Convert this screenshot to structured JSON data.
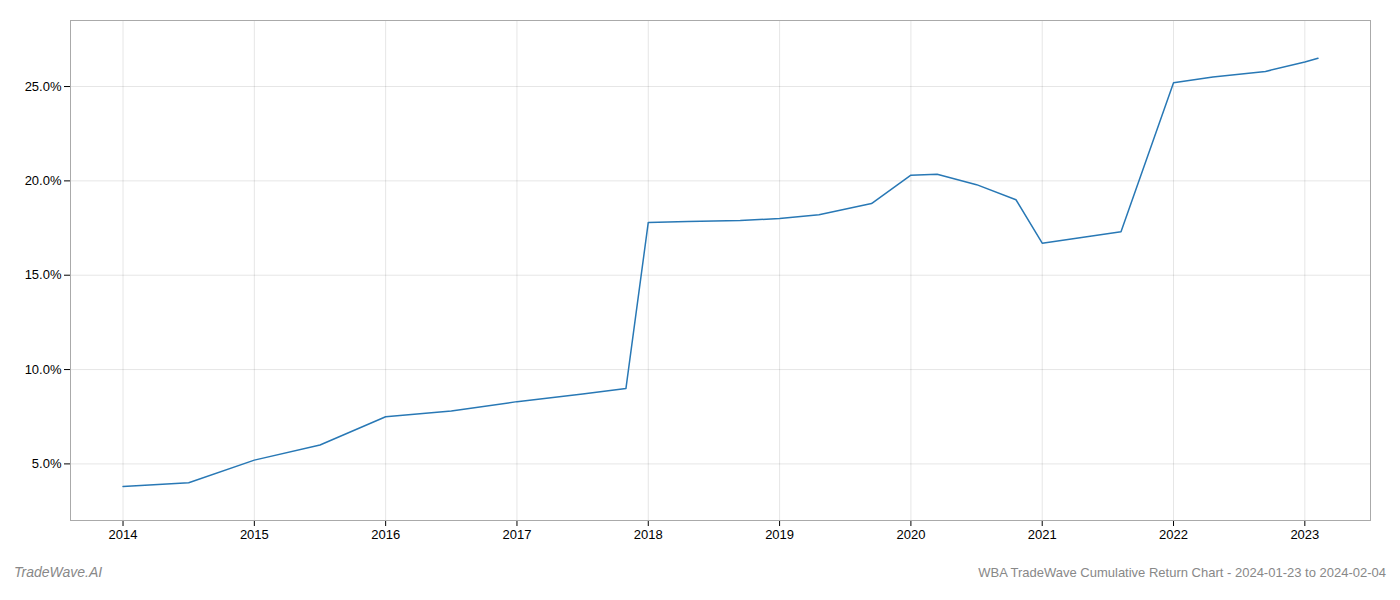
{
  "chart_data": {
    "type": "line",
    "title": "WBA TradeWave Cumulative Return Chart - 2024-01-23 to 2024-02-04",
    "annotations": [
      "TradeWave.AI"
    ],
    "x": [
      2014.0,
      2014.5,
      2015.0,
      2015.5,
      2016.0,
      2016.5,
      2017.0,
      2017.5,
      2017.83,
      2018.0,
      2018.3,
      2018.7,
      2019.0,
      2019.3,
      2019.7,
      2020.0,
      2020.2,
      2020.5,
      2020.8,
      2021.0,
      2021.3,
      2021.6,
      2022.0,
      2022.3,
      2022.7,
      2023.0,
      2023.1
    ],
    "values": [
      3.8,
      4.0,
      5.2,
      6.0,
      7.5,
      7.8,
      8.3,
      8.7,
      9.0,
      17.8,
      17.85,
      17.9,
      18.0,
      18.2,
      18.8,
      20.3,
      20.35,
      19.8,
      19.0,
      16.7,
      17.0,
      17.3,
      25.2,
      25.5,
      25.8,
      26.3,
      26.5
    ],
    "color": "#2878b5",
    "xlim": [
      2013.6,
      2023.5
    ],
    "ylim": [
      2.0,
      28.5
    ],
    "xticks": [
      2014,
      2015,
      2016,
      2017,
      2018,
      2019,
      2020,
      2021,
      2022,
      2023
    ],
    "yticks": [
      {
        "value": 5.0,
        "label": "5.0%"
      },
      {
        "value": 10.0,
        "label": "10.0%"
      },
      {
        "value": 15.0,
        "label": "15.0%"
      },
      {
        "value": 20.0,
        "label": "20.0%"
      },
      {
        "value": 25.0,
        "label": "25.0%"
      }
    ],
    "grid": true
  }
}
